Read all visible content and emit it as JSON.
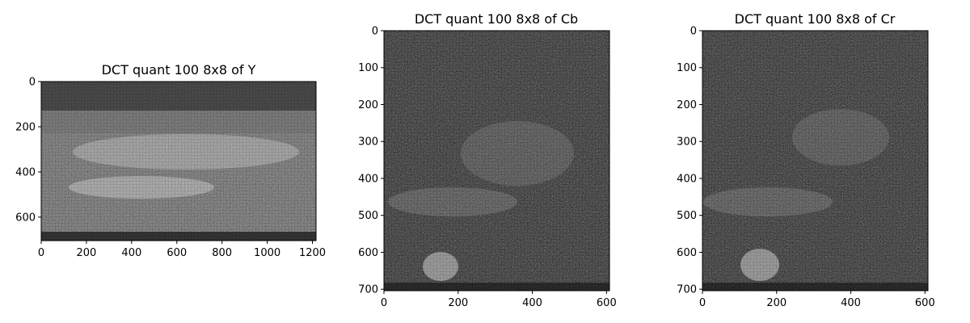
{
  "chart_data": [
    {
      "type": "heatmap",
      "title": "DCT quant 100 8x8 of Y",
      "colormap": "gray",
      "xlim": [
        0,
        1216
      ],
      "ylim": [
        704,
        0
      ],
      "xticks": [
        0,
        200,
        400,
        600,
        800,
        1000,
        1200
      ],
      "yticks": [
        0,
        200,
        400,
        600
      ],
      "texture": "dense 8x8 block noise over a grayscale airport-apron scene with parked aircraft and ground lines"
    },
    {
      "type": "heatmap",
      "title": "DCT quant 100 8x8 of Cb",
      "colormap": "gray",
      "xlim": [
        0,
        608
      ],
      "ylim": [
        704,
        0
      ],
      "xticks": [
        0,
        200,
        400,
        600
      ],
      "yticks": [
        0,
        100,
        200,
        300,
        400,
        500,
        600,
        700
      ],
      "texture": "dark 8x8 block noise with faint brighter structures; bright blob near lower-left"
    },
    {
      "type": "heatmap",
      "title": "DCT quant 100 8x8 of Cr",
      "colormap": "gray",
      "xlim": [
        0,
        608
      ],
      "ylim": [
        704,
        0
      ],
      "xticks": [
        0,
        200,
        400,
        600
      ],
      "yticks": [
        0,
        100,
        200,
        300,
        400,
        500,
        600,
        700
      ],
      "texture": "dark 8x8 block noise with faint brighter structures; bright blob near lower-left"
    }
  ]
}
